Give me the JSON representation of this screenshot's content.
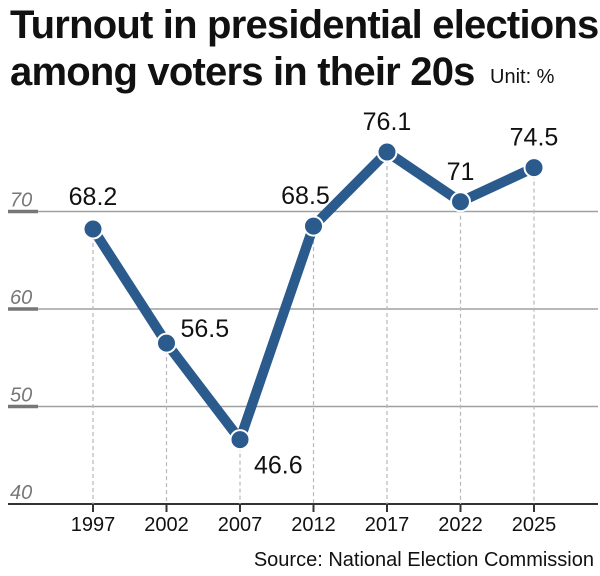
{
  "header": {
    "title_line1": "Turnout in presidential elections",
    "title_line2": "among voters in their 20s",
    "unit": "Unit: %"
  },
  "footer": {
    "source": "Source: National Election Commission"
  },
  "colors": {
    "series": "#2b5a8c",
    "grid": "#a0a0a0",
    "axis_ticks": "#777777",
    "guides": "#b8b8b8"
  },
  "chart_data": {
    "type": "line",
    "title": "Turnout in presidential elections among voters in their 20s",
    "unit": "Unit: %",
    "x": [
      "1997",
      "2002",
      "2007",
      "2012",
      "2017",
      "2022",
      "2025"
    ],
    "series": [
      {
        "values": [
          68.2,
          56.5,
          46.6,
          68.5,
          76.1,
          71,
          74.5
        ],
        "labels": [
          "68.2",
          "56.5",
          "46.6",
          "68.5",
          "76.1",
          "71",
          "74.5"
        ]
      }
    ],
    "yticks": [
      "40",
      "50",
      "60",
      "70"
    ],
    "ylim": [
      40,
      80
    ],
    "grid": true,
    "source": "Source: National Election Commission"
  }
}
